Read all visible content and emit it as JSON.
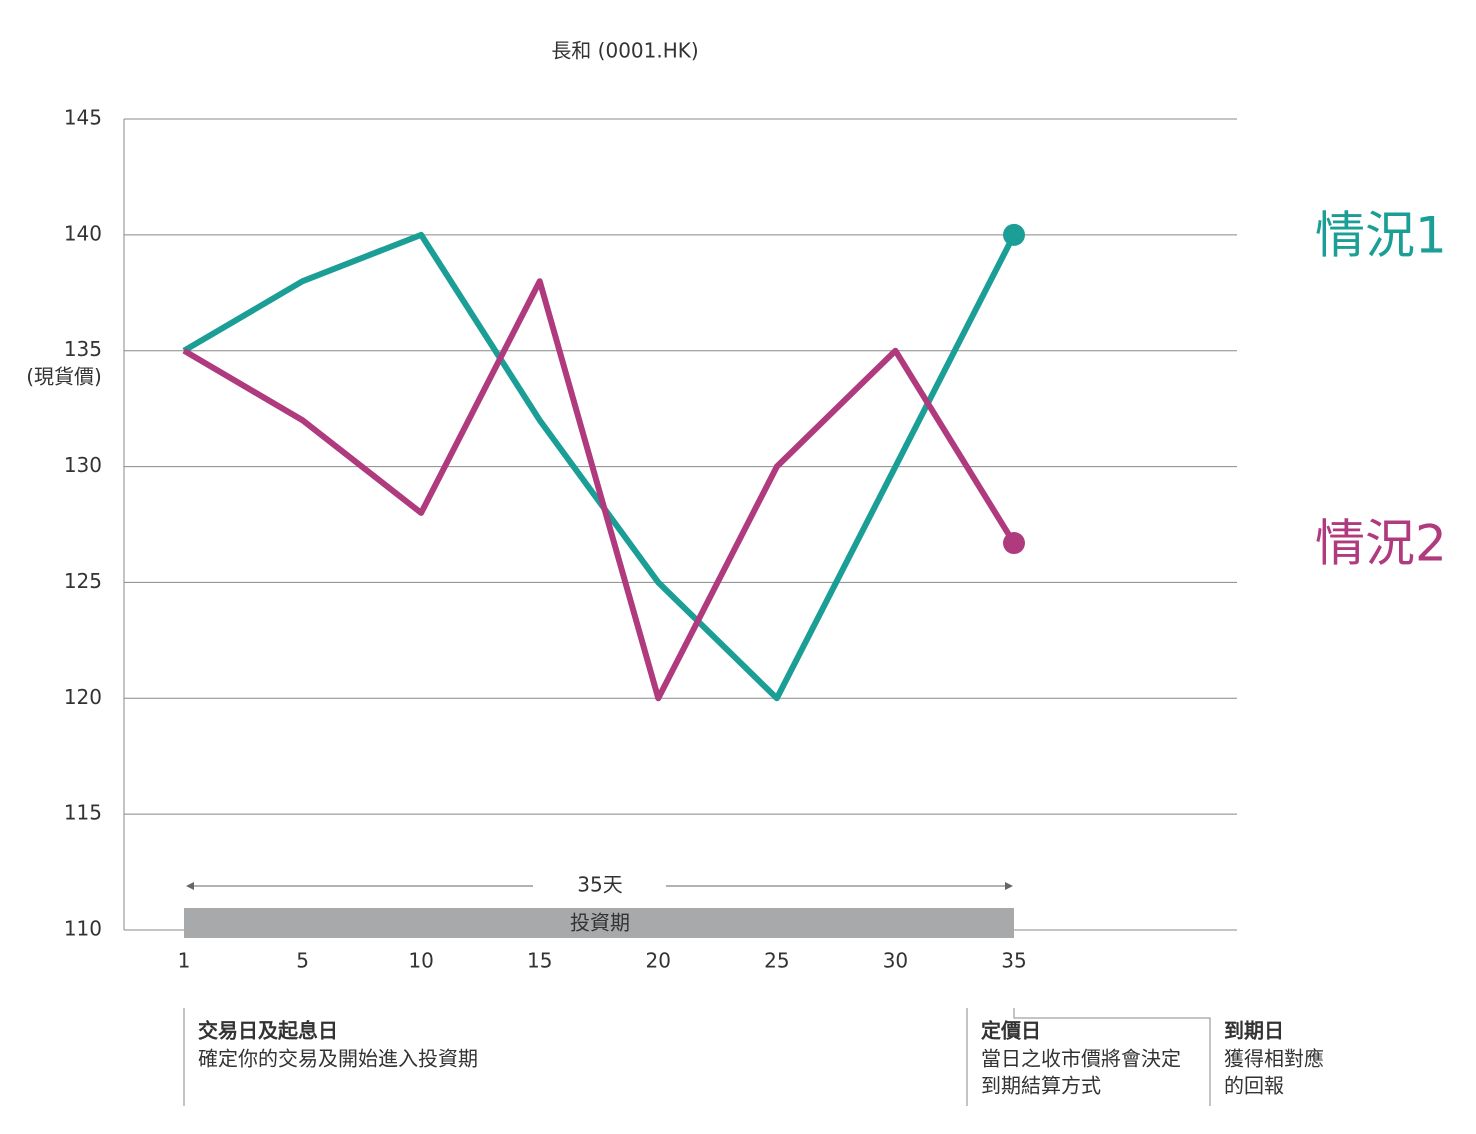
{
  "chart_data": {
    "type": "line",
    "title": "長和 (0001.HK)",
    "y_note": "(現貨價)",
    "categories": [
      "1",
      "5",
      "10",
      "15",
      "20",
      "25",
      "30",
      "35"
    ],
    "series": [
      {
        "name": "情況1",
        "color": "#1a9e96",
        "values": [
          135,
          138,
          140,
          132,
          125,
          120,
          130,
          140
        ]
      },
      {
        "name": "情況2",
        "color": "#b03a7e",
        "values": [
          135,
          132,
          128,
          138,
          120,
          130,
          135,
          126.7
        ]
      }
    ],
    "ylim": [
      110,
      145
    ],
    "yticks": [
      110,
      115,
      120,
      125,
      130,
      135,
      140,
      145
    ],
    "grid": true,
    "period_length": "35天",
    "period_label": "投資期",
    "milestones": [
      {
        "title": "交易日及起息日",
        "lines": [
          "確定你的交易及開始進入投資期"
        ]
      },
      {
        "title": "定價日",
        "lines": [
          "當日之收市價將會決定",
          "到期結算方式"
        ]
      },
      {
        "title": "到期日",
        "lines": [
          "獲得相對應",
          "的回報"
        ]
      }
    ]
  }
}
